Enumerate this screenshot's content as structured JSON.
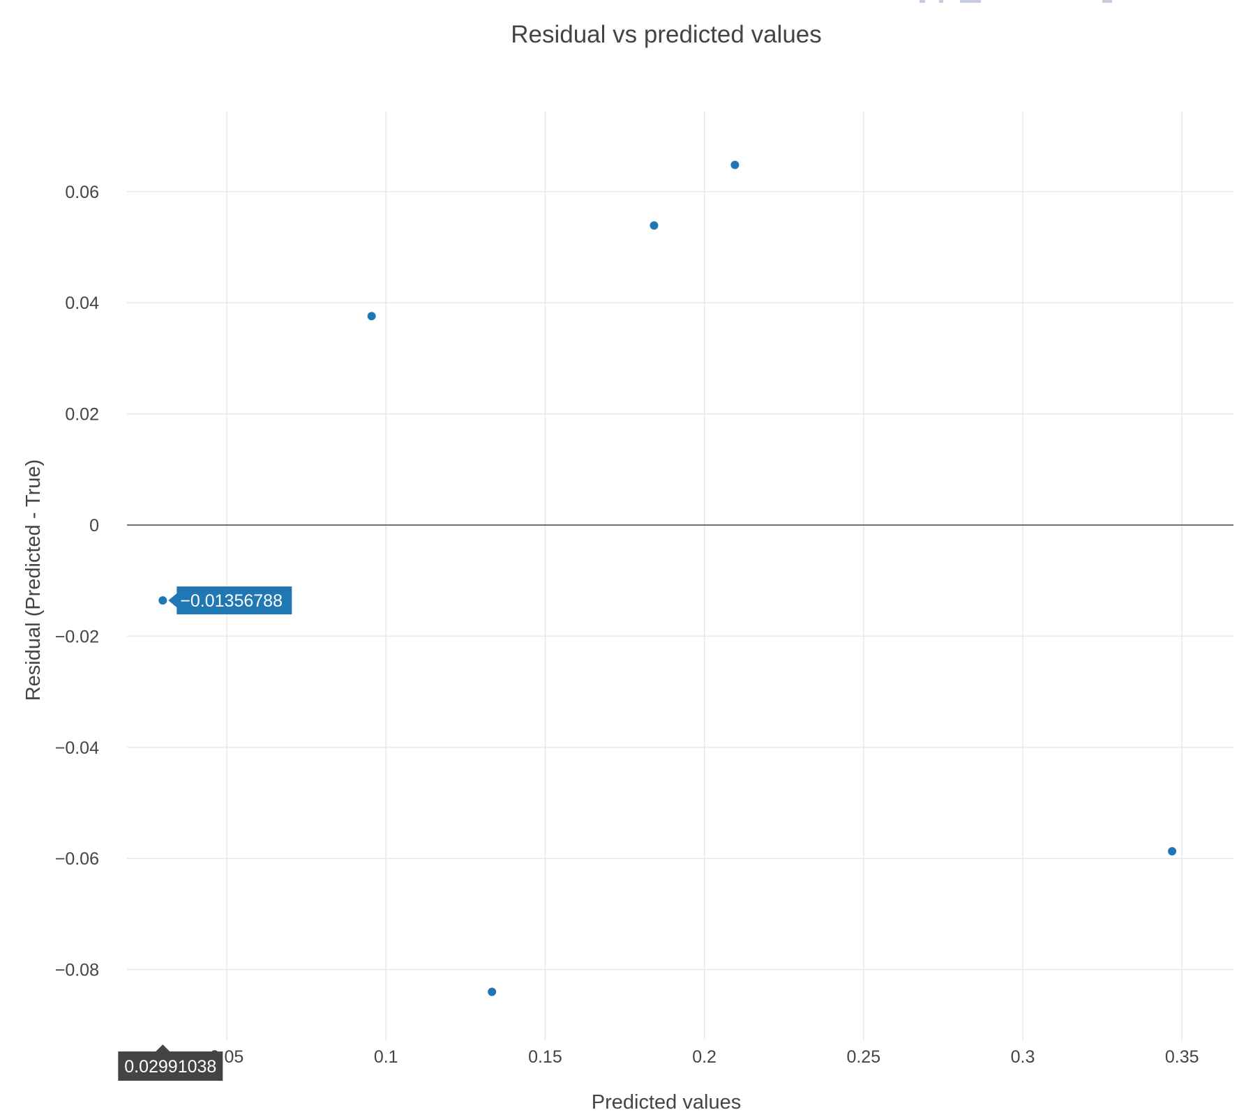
{
  "chart_data": {
    "type": "scatter",
    "title": "Residual vs predicted values",
    "xlabel": "Predicted values",
    "ylabel": "Residual (Predicted - True)",
    "xlim": [
      0.017,
      0.366
    ],
    "ylim": [
      -0.093,
      0.074
    ],
    "x_ticks": [
      {
        "value": 0.05,
        "label": "0.05"
      },
      {
        "value": 0.1,
        "label": "0.1"
      },
      {
        "value": 0.15,
        "label": "0.15"
      },
      {
        "value": 0.2,
        "label": "0.2"
      },
      {
        "value": 0.25,
        "label": "0.25"
      },
      {
        "value": 0.3,
        "label": "0.3"
      },
      {
        "value": 0.35,
        "label": "0.35"
      }
    ],
    "y_ticks": [
      {
        "value": 0.06,
        "label": "0.06"
      },
      {
        "value": 0.04,
        "label": "0.04"
      },
      {
        "value": 0.02,
        "label": "0.02"
      },
      {
        "value": 0,
        "label": "0"
      },
      {
        "value": -0.02,
        "label": "−0.02"
      },
      {
        "value": -0.04,
        "label": "−0.04"
      },
      {
        "value": -0.06,
        "label": "−0.06"
      },
      {
        "value": -0.08,
        "label": "−0.08"
      }
    ],
    "grid": true,
    "zero_line": true,
    "marker_color": "#1f77b4",
    "points": [
      {
        "x": 0.02991038,
        "y": -0.01356788
      },
      {
        "x": 0.0955,
        "y": 0.0376
      },
      {
        "x": 0.1333,
        "y": -0.084
      },
      {
        "x": 0.1842,
        "y": 0.0539
      },
      {
        "x": 0.2096,
        "y": 0.0648
      },
      {
        "x": 0.3469,
        "y": -0.0587
      }
    ],
    "hover": {
      "point_index": 0,
      "y_label": "−0.01356788",
      "x_label": "0.02991038",
      "y_label_color": "#1f77b4",
      "x_label_color": "#444444"
    }
  }
}
